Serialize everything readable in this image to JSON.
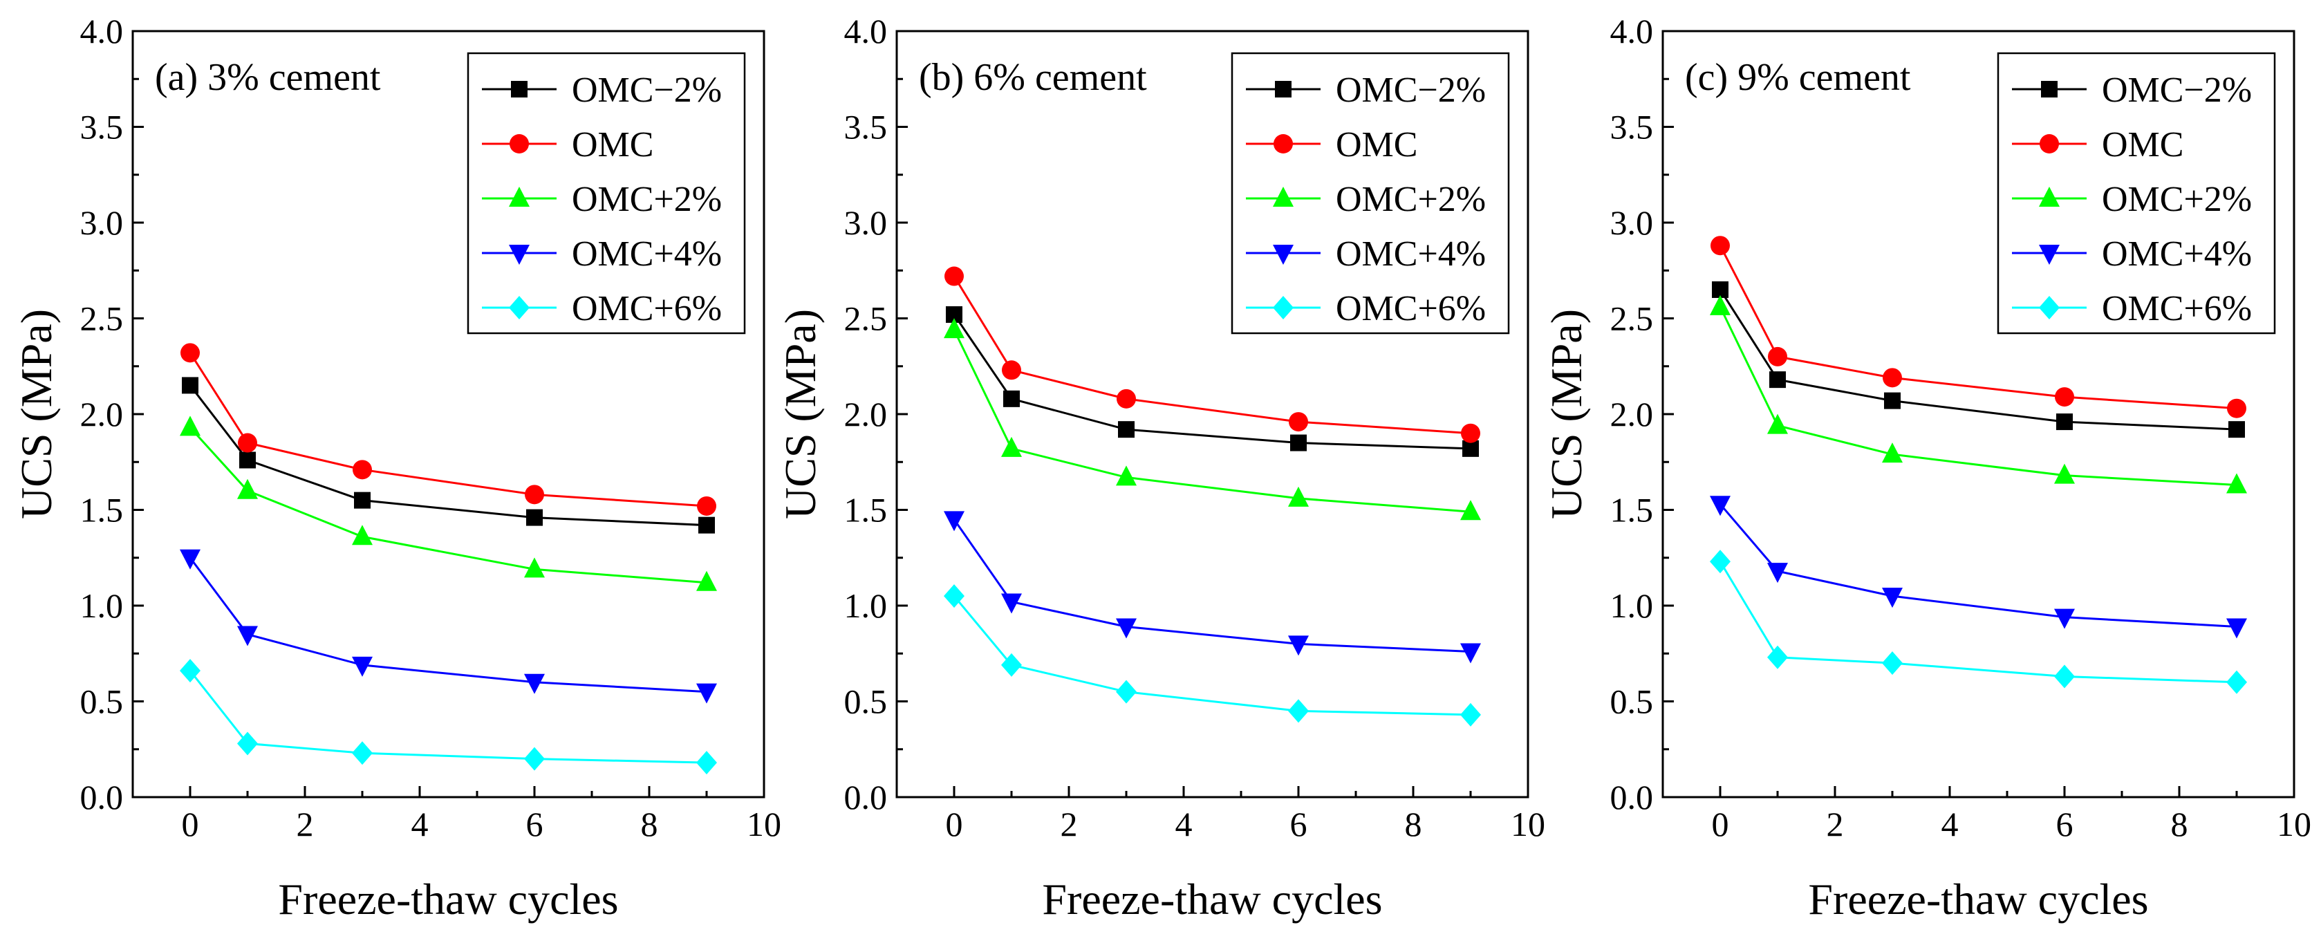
{
  "chart_data": [
    {
      "type": "line",
      "title": "(a) 3% cement",
      "xlabel": "Freeze-thaw cycles",
      "ylabel": "UCS (MPa)",
      "xlim": [
        -1,
        10
      ],
      "ylim": [
        0,
        4.0
      ],
      "x_ticks": [
        "0",
        "2",
        "4",
        "6",
        "8",
        "10"
      ],
      "y_ticks": [
        "0.0",
        "0.5",
        "1.0",
        "1.5",
        "2.0",
        "2.5",
        "3.0",
        "3.5",
        "4.0"
      ],
      "legend_position": "top-right",
      "x": [
        0,
        1,
        3,
        6,
        9
      ],
      "series": [
        {
          "name": "OMC−2%",
          "color": "#000000",
          "marker": "square",
          "values": [
            2.15,
            1.76,
            1.55,
            1.46,
            1.42
          ]
        },
        {
          "name": "OMC",
          "color": "#ff0000",
          "marker": "circle",
          "values": [
            2.32,
            1.85,
            1.71,
            1.58,
            1.52
          ]
        },
        {
          "name": "OMC+2%",
          "color": "#00ff00",
          "marker": "triangle-up",
          "values": [
            1.93,
            1.6,
            1.36,
            1.19,
            1.12
          ]
        },
        {
          "name": "OMC+4%",
          "color": "#0000ff",
          "marker": "triangle-down",
          "values": [
            1.25,
            0.85,
            0.69,
            0.6,
            0.55
          ]
        },
        {
          "name": "OMC+6%",
          "color": "#00ffff",
          "marker": "diamond",
          "values": [
            0.66,
            0.28,
            0.23,
            0.2,
            0.18
          ]
        }
      ]
    },
    {
      "type": "line",
      "title": "(b) 6% cement",
      "xlabel": "Freeze-thaw cycles",
      "ylabel": "UCS (MPa)",
      "xlim": [
        -1,
        10
      ],
      "ylim": [
        0,
        4.0
      ],
      "x_ticks": [
        "0",
        "2",
        "4",
        "6",
        "8",
        "10"
      ],
      "y_ticks": [
        "0.0",
        "0.5",
        "1.0",
        "1.5",
        "2.0",
        "2.5",
        "3.0",
        "3.5",
        "4.0"
      ],
      "legend_position": "top-right",
      "x": [
        0,
        1,
        3,
        6,
        9
      ],
      "series": [
        {
          "name": "OMC−2%",
          "color": "#000000",
          "marker": "square",
          "values": [
            2.52,
            2.08,
            1.92,
            1.85,
            1.82
          ]
        },
        {
          "name": "OMC",
          "color": "#ff0000",
          "marker": "circle",
          "values": [
            2.72,
            2.23,
            2.08,
            1.96,
            1.9
          ]
        },
        {
          "name": "OMC+2%",
          "color": "#00ff00",
          "marker": "triangle-up",
          "values": [
            2.44,
            1.82,
            1.67,
            1.56,
            1.49
          ]
        },
        {
          "name": "OMC+4%",
          "color": "#0000ff",
          "marker": "triangle-down",
          "values": [
            1.45,
            1.02,
            0.89,
            0.8,
            0.76
          ]
        },
        {
          "name": "OMC+6%",
          "color": "#00ffff",
          "marker": "diamond",
          "values": [
            1.05,
            0.69,
            0.55,
            0.45,
            0.43
          ]
        }
      ]
    },
    {
      "type": "line",
      "title": "(c) 9% cement",
      "xlabel": "Freeze-thaw cycles",
      "ylabel": "UCS (MPa)",
      "xlim": [
        -1,
        10
      ],
      "ylim": [
        0,
        4.0
      ],
      "x_ticks": [
        "0",
        "2",
        "4",
        "6",
        "8",
        "10"
      ],
      "y_ticks": [
        "0.0",
        "0.5",
        "1.0",
        "1.5",
        "2.0",
        "2.5",
        "3.0",
        "3.5",
        "4.0"
      ],
      "legend_position": "top-right",
      "x": [
        0,
        1,
        3,
        6,
        9
      ],
      "series": [
        {
          "name": "OMC−2%",
          "color": "#000000",
          "marker": "square",
          "values": [
            2.65,
            2.18,
            2.07,
            1.96,
            1.92
          ]
        },
        {
          "name": "OMC",
          "color": "#ff0000",
          "marker": "circle",
          "values": [
            2.88,
            2.3,
            2.19,
            2.09,
            2.03
          ]
        },
        {
          "name": "OMC+2%",
          "color": "#00ff00",
          "marker": "triangle-up",
          "values": [
            2.56,
            1.94,
            1.79,
            1.68,
            1.63
          ]
        },
        {
          "name": "OMC+4%",
          "color": "#0000ff",
          "marker": "triangle-down",
          "values": [
            1.53,
            1.18,
            1.05,
            0.94,
            0.89
          ]
        },
        {
          "name": "OMC+6%",
          "color": "#00ffff",
          "marker": "diamond",
          "values": [
            1.23,
            0.73,
            0.7,
            0.63,
            0.6
          ]
        }
      ]
    }
  ]
}
